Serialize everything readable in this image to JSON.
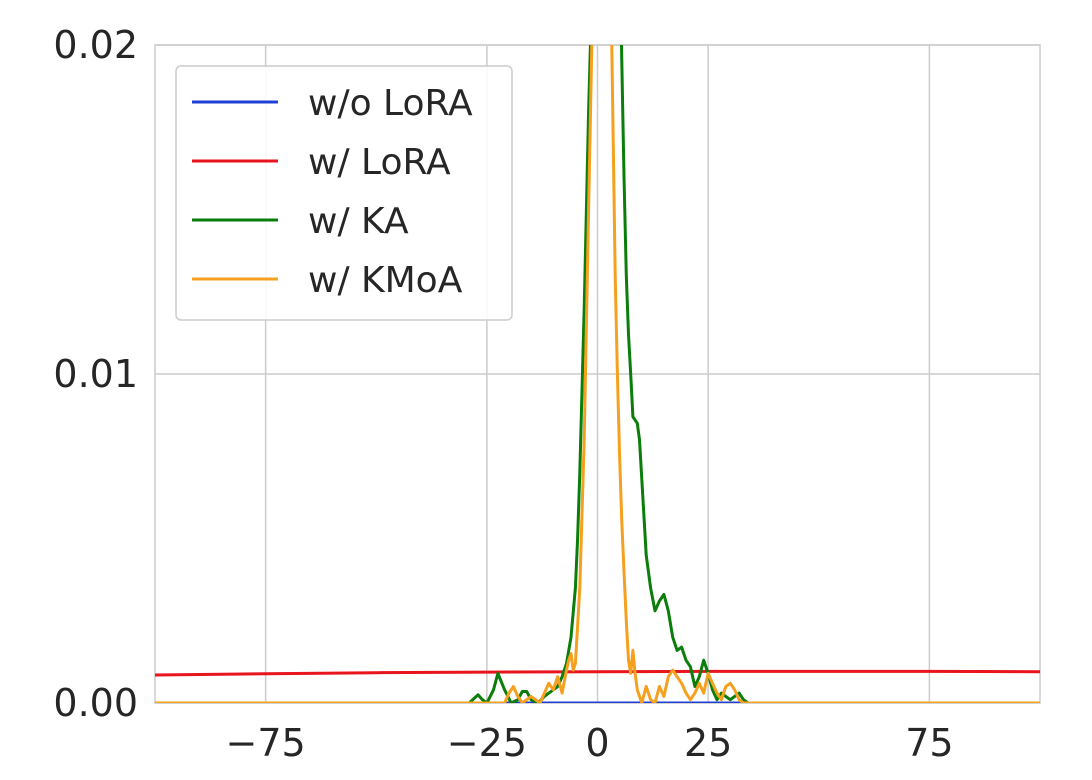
{
  "chart_data": {
    "type": "line",
    "title": "",
    "xlabel": "",
    "ylabel": "",
    "xlim": [
      -100,
      100
    ],
    "ylim": [
      0,
      0.02
    ],
    "grid": true,
    "legend_position": "top-left",
    "x_ticks": [
      {
        "value": -75,
        "label": "−75"
      },
      {
        "value": -25,
        "label": "−25"
      },
      {
        "value": 0,
        "label": "0"
      },
      {
        "value": 25,
        "label": "25"
      },
      {
        "value": 75,
        "label": "75"
      }
    ],
    "y_ticks": [
      {
        "value": 0.0,
        "label": "0.00"
      },
      {
        "value": 0.01,
        "label": "0.01"
      },
      {
        "value": 0.02,
        "label": "0.02"
      }
    ],
    "series": [
      {
        "name": "w/o LoRA",
        "color": "#1f3fd6",
        "x": [
          -100,
          100
        ],
        "y": [
          0.0,
          0.0
        ]
      },
      {
        "name": "w/ LoRA",
        "color": "#e8141e",
        "x": [
          -100,
          -75,
          -50,
          -25,
          0,
          25,
          50,
          75,
          100
        ],
        "y": [
          0.00085,
          0.00089,
          0.00092,
          0.00094,
          0.00095,
          0.00096,
          0.00096,
          0.00096,
          0.00095
        ]
      },
      {
        "name": "w/ KA",
        "color": "#0a7d0a",
        "x": [
          -100,
          -29,
          -27,
          -26,
          -25,
          -23.5,
          -22.5,
          -21,
          -19.5,
          -18,
          -17,
          -16,
          -15,
          -13.5,
          -12,
          -11,
          -10,
          -9,
          -8,
          -7,
          -6,
          -5,
          -4.5,
          -4,
          -3.5,
          -3,
          -2.5,
          -2,
          -1.5,
          -1,
          5,
          5.5,
          6,
          6.5,
          7,
          7.5,
          8,
          9,
          9.5,
          10,
          11,
          12,
          13,
          14,
          15,
          16,
          17,
          18,
          19,
          20,
          21,
          22,
          23,
          24,
          25,
          26,
          27,
          28,
          29,
          30,
          31,
          32,
          33,
          34,
          100
        ],
        "y": [
          0,
          0,
          0.00025,
          0.0001,
          0,
          0.0004,
          0.0009,
          0.0004,
          0,
          0.0001,
          0.00035,
          0.00035,
          0.0001,
          0,
          0.0002,
          0.0003,
          0.0004,
          0.0005,
          0.0008,
          0.0012,
          0.002,
          0.0035,
          0.005,
          0.007,
          0.0095,
          0.012,
          0.015,
          0.018,
          0.0205,
          0.023,
          0.023,
          0.0195,
          0.016,
          0.013,
          0.0112,
          0.01,
          0.0087,
          0.0085,
          0.008,
          0.0068,
          0.0045,
          0.0035,
          0.0028,
          0.0031,
          0.0033,
          0.0028,
          0.002,
          0.0016,
          0.0017,
          0.0013,
          0.0011,
          0.0005,
          0.0008,
          0.0013,
          0.0009,
          0.0004,
          0.0001,
          0.0003,
          0.0002,
          0.0001,
          0.0002,
          0.0003,
          0.0001,
          0,
          0
        ]
      },
      {
        "name": "w/ KMoA",
        "color": "#f5a01e",
        "x": [
          -100,
          -21,
          -20,
          -19,
          -18,
          -17,
          -16,
          -15,
          -14,
          -13,
          -12,
          -11,
          -10,
          -9,
          -8,
          -7,
          -6.5,
          -6,
          -5.5,
          -5,
          -4,
          -3,
          -2,
          -1,
          3,
          3.5,
          4,
          4.5,
          5,
          5.5,
          6,
          6.5,
          7,
          7.5,
          8,
          8.5,
          9,
          10,
          11,
          12,
          13,
          14,
          15,
          16,
          17,
          18,
          19,
          20,
          21,
          22,
          23,
          24,
          25,
          26,
          27,
          28,
          29,
          30,
          31,
          32,
          33,
          100
        ],
        "y": [
          0,
          0,
          0.0003,
          0.0005,
          0.0002,
          0,
          0.0001,
          0.0002,
          0.0001,
          0,
          0.0003,
          0.0006,
          0.0004,
          0.0008,
          0.0003,
          0.001,
          0.0013,
          0.0015,
          0.001,
          0.0012,
          0.0035,
          0.008,
          0.015,
          0.022,
          0.022,
          0.0175,
          0.013,
          0.01,
          0.0075,
          0.0055,
          0.004,
          0.0025,
          0.0013,
          0.0009,
          0.0016,
          0.0009,
          0.0004,
          0,
          0.0005,
          0.0001,
          0,
          0.0005,
          0.0002,
          0.0008,
          0.001,
          0.0008,
          0.0006,
          0.0003,
          0.0001,
          0.0003,
          0.0006,
          0.0003,
          0.0009,
          0.0006,
          0.0003,
          0.0001,
          0.0005,
          0.0006,
          0.0004,
          0.0001,
          0,
          0
        ]
      }
    ]
  }
}
